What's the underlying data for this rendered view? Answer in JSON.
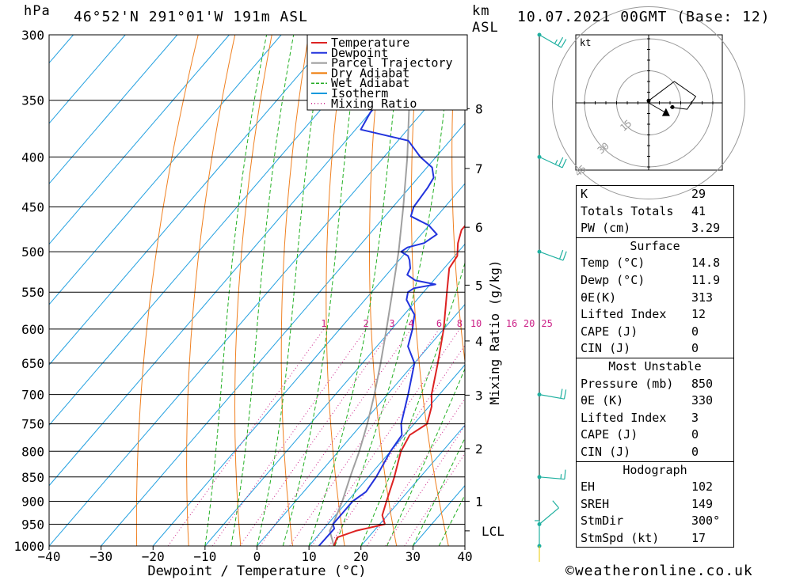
{
  "header": {
    "hpa_label": "hPa",
    "location": "46°52'N 291°01'W 191m ASL",
    "km_label": "km",
    "asl_label": "ASL",
    "datetime": "10.07.2021 00GMT (Base: 12)"
  },
  "chart_data": {
    "type": "skew-t",
    "title": "46°52'N 291°01'W 191m ASL",
    "xlabel": "Dewpoint / Temperature (°C)",
    "ylabel_left": "hPa",
    "ylabel_right": "Mixing Ratio (g/kg)",
    "pressure_levels": [
      300,
      350,
      400,
      450,
      500,
      550,
      600,
      650,
      700,
      750,
      800,
      850,
      900,
      950,
      1000
    ],
    "x_ticks": [
      -40,
      -30,
      -20,
      -10,
      0,
      10,
      20,
      30,
      40
    ],
    "xlim": [
      -40,
      40
    ],
    "ylim": [
      1000,
      300
    ],
    "km_ticks": [
      {
        "km": 1,
        "p": 900
      },
      {
        "km": 2,
        "p": 795
      },
      {
        "km": 3,
        "p": 701
      },
      {
        "km": 4,
        "p": 617
      },
      {
        "km": 5,
        "p": 541
      },
      {
        "km": 6,
        "p": 472
      },
      {
        "km": 7,
        "p": 411
      },
      {
        "km": 8,
        "p": 357
      }
    ],
    "lcl": {
      "label": "LCL",
      "p": 965
    },
    "mixing_ratio_labels": [
      "1",
      "2",
      "3",
      "4",
      "6",
      "8",
      "10",
      "16",
      "20",
      "25"
    ],
    "mixing_ratio_label_p": 600,
    "legend": [
      {
        "label": "Temperature",
        "color": "#dd2222",
        "style": "solid"
      },
      {
        "label": "Dewpoint",
        "color": "#2233dd",
        "style": "solid"
      },
      {
        "label": "Parcel Trajectory",
        "color": "#999999",
        "style": "solid"
      },
      {
        "label": "Dry Adiabat",
        "color": "#ee7700",
        "style": "solid"
      },
      {
        "label": "Wet Adiabat",
        "color": "#22aa22",
        "style": "dashed"
      },
      {
        "label": "Isotherm",
        "color": "#1199dd",
        "style": "solid"
      },
      {
        "label": "Mixing Ratio",
        "color": "#cc2288",
        "style": "dotted"
      }
    ],
    "temperature": [
      [
        1000,
        14.8
      ],
      [
        980,
        14.0
      ],
      [
        965,
        16.5
      ],
      [
        950,
        21.0
      ],
      [
        930,
        19.0
      ],
      [
        900,
        17.5
      ],
      [
        850,
        15.0
      ],
      [
        800,
        12.0
      ],
      [
        770,
        11.0
      ],
      [
        750,
        12.5
      ],
      [
        720,
        10.5
      ],
      [
        700,
        8.5
      ],
      [
        650,
        4.5
      ],
      [
        600,
        0.0
      ],
      [
        550,
        -5.5
      ],
      [
        520,
        -9.0
      ],
      [
        505,
        -9.5
      ],
      [
        490,
        -11.5
      ],
      [
        475,
        -13.0
      ],
      [
        470,
        -13.0
      ],
      [
        450,
        -14.5
      ],
      [
        420,
        -19.0
      ],
      [
        400,
        -24.0
      ],
      [
        385,
        -25.0
      ],
      [
        370,
        -24.0
      ],
      [
        350,
        -28.0
      ],
      [
        300,
        -38.0
      ]
    ],
    "dewpoint": [
      [
        1000,
        11.9
      ],
      [
        960,
        12.0
      ],
      [
        950,
        11.0
      ],
      [
        900,
        11.0
      ],
      [
        880,
        12.0
      ],
      [
        850,
        11.5
      ],
      [
        800,
        10.0
      ],
      [
        770,
        9.5
      ],
      [
        750,
        7.5
      ],
      [
        700,
        4.0
      ],
      [
        650,
        0.0
      ],
      [
        625,
        -4.0
      ],
      [
        600,
        -6.0
      ],
      [
        590,
        -7.0
      ],
      [
        580,
        -8.0
      ],
      [
        575,
        -9.0
      ],
      [
        560,
        -12.0
      ],
      [
        550,
        -13.0
      ],
      [
        545,
        -12.5
      ],
      [
        540,
        -9.0
      ],
      [
        535,
        -13.5
      ],
      [
        528,
        -16.0
      ],
      [
        520,
        -16.5
      ],
      [
        510,
        -18.0
      ],
      [
        505,
        -19.0
      ],
      [
        500,
        -21.0
      ],
      [
        495,
        -20.5
      ],
      [
        490,
        -18.0
      ],
      [
        480,
        -17.0
      ],
      [
        470,
        -20.0
      ],
      [
        460,
        -25.0
      ],
      [
        450,
        -26.0
      ],
      [
        430,
        -26.5
      ],
      [
        420,
        -27.0
      ],
      [
        410,
        -29.0
      ],
      [
        400,
        -33.0
      ],
      [
        385,
        -38.0
      ],
      [
        375,
        -49.0
      ],
      [
        360,
        -50.0
      ],
      [
        340,
        -50.0
      ],
      [
        300,
        -52.0
      ]
    ],
    "parcel": [
      [
        1000,
        14.8
      ],
      [
        965,
        11.5
      ],
      [
        950,
        11.0
      ],
      [
        900,
        9.0
      ],
      [
        850,
        6.5
      ],
      [
        800,
        4.0
      ],
      [
        750,
        1.0
      ],
      [
        700,
        -2.5
      ],
      [
        650,
        -6.5
      ],
      [
        600,
        -11.0
      ],
      [
        550,
        -16.0
      ],
      [
        500,
        -21.5
      ],
      [
        450,
        -28.0
      ],
      [
        400,
        -35.5
      ],
      [
        350,
        -44.5
      ],
      [
        300,
        -55.0
      ]
    ],
    "wind_barbs": [
      {
        "p": 300,
        "dir": 300,
        "spd": 25
      },
      {
        "p": 400,
        "dir": 295,
        "spd": 25
      },
      {
        "p": 500,
        "dir": 290,
        "spd": 20
      },
      {
        "p": 700,
        "dir": 280,
        "spd": 20
      },
      {
        "p": 850,
        "dir": 275,
        "spd": 15
      },
      {
        "p": 950,
        "dir": 230,
        "spd": 10
      },
      {
        "p": 1000,
        "dir": 180,
        "spd": 5
      }
    ],
    "hodograph": {
      "unit_label": "kt",
      "ring_labels": [
        "15",
        "30",
        "45"
      ],
      "trace": [
        [
          0,
          1
        ],
        [
          12,
          10
        ],
        [
          22,
          3
        ],
        [
          18,
          -3
        ],
        [
          10,
          -2
        ]
      ],
      "storm_motion": {
        "dir": 300,
        "spd": 17
      }
    }
  },
  "indices": {
    "basic": [
      {
        "k": "K",
        "v": "29"
      },
      {
        "k": "Totals Totals",
        "v": "41"
      },
      {
        "k": "PW (cm)",
        "v": "3.29"
      }
    ],
    "surface": {
      "title": "Surface",
      "rows": [
        {
          "k": "Temp (°C)",
          "v": "14.8"
        },
        {
          "k": "Dewp (°C)",
          "v": "11.9"
        },
        {
          "k": "θE(K)",
          "v": "313"
        },
        {
          "k": "Lifted Index",
          "v": "12"
        },
        {
          "k": "CAPE (J)",
          "v": "0"
        },
        {
          "k": "CIN (J)",
          "v": "0"
        }
      ]
    },
    "most_unstable": {
      "title": "Most Unstable",
      "rows": [
        {
          "k": "Pressure (mb)",
          "v": "850"
        },
        {
          "k": "θE (K)",
          "v": "330"
        },
        {
          "k": "Lifted Index",
          "v": "3"
        },
        {
          "k": "CAPE (J)",
          "v": "0"
        },
        {
          "k": "CIN (J)",
          "v": "0"
        }
      ]
    },
    "hodograph": {
      "title": "Hodograph",
      "rows": [
        {
          "k": "EH",
          "v": "102"
        },
        {
          "k": "SREH",
          "v": "149"
        },
        {
          "k": "StmDir",
          "v": "300°"
        },
        {
          "k": "StmSpd (kt)",
          "v": "17"
        }
      ]
    }
  },
  "footer": {
    "copyright": "©weatheronline.co.uk"
  }
}
